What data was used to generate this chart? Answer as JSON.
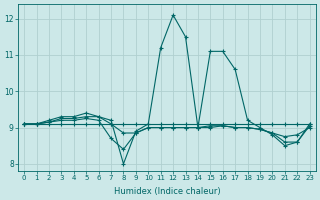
{
  "xlabel": "Humidex (Indice chaleur)",
  "xlim": [
    -0.5,
    23.5
  ],
  "ylim": [
    7.8,
    12.4
  ],
  "yticks": [
    8,
    9,
    10,
    11,
    12
  ],
  "xticks": [
    0,
    1,
    2,
    3,
    4,
    5,
    6,
    7,
    8,
    9,
    10,
    11,
    12,
    13,
    14,
    15,
    16,
    17,
    18,
    19,
    20,
    21,
    22,
    23
  ],
  "bg_color": "#cce8e8",
  "grid_color": "#b0d0d0",
  "line_color": "#006666",
  "lines": [
    [
      9.1,
      9.1,
      9.2,
      9.3,
      9.3,
      9.4,
      9.3,
      9.2,
      8.0,
      8.9,
      9.1,
      11.2,
      12.1,
      11.5,
      9.0,
      11.1,
      11.1,
      10.6,
      9.2,
      9.0,
      8.8,
      8.5,
      8.6,
      9.1
    ],
    [
      9.1,
      9.1,
      9.1,
      9.1,
      9.1,
      9.1,
      9.1,
      9.1,
      9.1,
      9.1,
      9.1,
      9.1,
      9.1,
      9.1,
      9.1,
      9.1,
      9.1,
      9.1,
      9.1,
      9.1,
      9.1,
      9.1,
      9.1,
      9.1
    ],
    [
      9.1,
      9.1,
      9.15,
      9.2,
      9.2,
      9.25,
      9.2,
      8.7,
      8.4,
      8.85,
      9.0,
      9.0,
      9.0,
      9.0,
      9.0,
      9.05,
      9.05,
      9.0,
      9.0,
      8.95,
      8.85,
      8.75,
      8.8,
      9.0
    ],
    [
      9.1,
      9.1,
      9.15,
      9.25,
      9.25,
      9.3,
      9.3,
      9.1,
      8.85,
      8.85,
      9.0,
      9.0,
      9.0,
      9.0,
      9.0,
      9.0,
      9.05,
      9.0,
      9.0,
      8.95,
      8.85,
      8.6,
      8.6,
      9.05
    ]
  ]
}
